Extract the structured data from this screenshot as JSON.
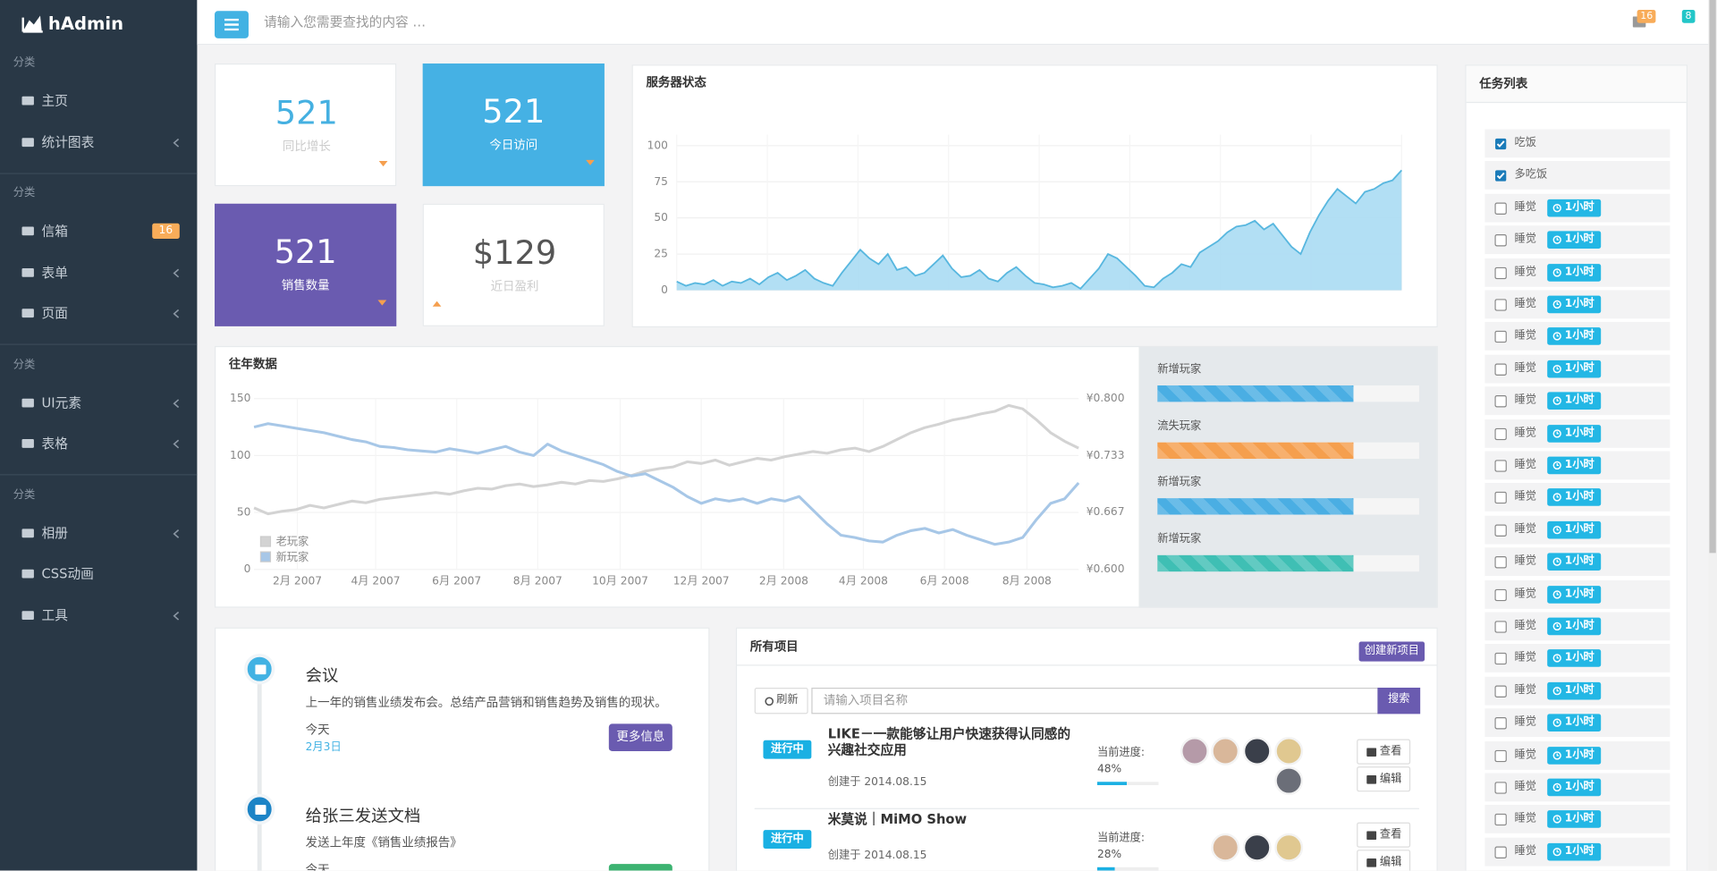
{
  "sidebar": {
    "brand": "hAdmin",
    "groups": [
      {
        "label": "分类",
        "items": [
          {
            "label": "主页"
          },
          {
            "label": "统计图表",
            "has_submenu": true
          }
        ]
      },
      {
        "label": "分类",
        "items": [
          {
            "label": "信箱",
            "badge": "16"
          },
          {
            "label": "表单",
            "has_submenu": true
          },
          {
            "label": "页面",
            "has_submenu": true
          }
        ]
      },
      {
        "label": "分类",
        "items": [
          {
            "label": "UI元素",
            "has_submenu": true
          },
          {
            "label": "表格",
            "has_submenu": true
          }
        ]
      },
      {
        "label": "分类",
        "items": [
          {
            "label": "相册",
            "has_submenu": true
          },
          {
            "label": "CSS动画"
          },
          {
            "label": "工具",
            "has_submenu": true
          }
        ]
      }
    ]
  },
  "topbar": {
    "search_placeholder": "请输入您需要查找的内容 …",
    "mail_count": "16",
    "bell_count": "8"
  },
  "stats": [
    {
      "value": "521",
      "label": "同比增长"
    },
    {
      "value": "521",
      "label": "今日访问"
    },
    {
      "value": "521",
      "label": "销售数量"
    },
    {
      "value": "$129",
      "label": "近日盈利"
    }
  ],
  "chart_data": [
    {
      "type": "area",
      "title": "服务器状态",
      "color": "#58b7df",
      "grid": true,
      "ylim": [
        0,
        100
      ],
      "yticks": [
        0,
        25,
        50,
        75,
        100
      ],
      "xlim": [
        0,
        79
      ],
      "values": [
        6,
        3,
        5,
        4,
        7,
        3,
        6,
        5,
        8,
        4,
        9,
        12,
        7,
        10,
        14,
        8,
        5,
        3,
        12,
        20,
        28,
        22,
        18,
        25,
        14,
        16,
        10,
        12,
        18,
        24,
        15,
        9,
        10,
        14,
        8,
        6,
        12,
        16,
        10,
        5,
        4,
        2,
        3,
        5,
        1,
        8,
        15,
        25,
        22,
        16,
        10,
        3,
        2,
        8,
        12,
        18,
        16,
        26,
        30,
        34,
        40,
        44,
        45,
        48,
        42,
        46,
        38,
        30,
        25,
        40,
        52,
        62,
        70,
        65,
        60,
        68,
        70,
        74,
        76,
        83
      ]
    },
    {
      "type": "line",
      "title": "往年数据",
      "grid": true,
      "legend": "bottom-left",
      "xlim": [
        0,
        59
      ],
      "xticks": [
        {
          "value": 3.1,
          "label": "2月 2007"
        },
        {
          "value": 8.7,
          "label": "4月 2007"
        },
        {
          "value": 14.5,
          "label": "6月 2007"
        },
        {
          "value": 20.3,
          "label": "8月 2007"
        },
        {
          "value": 26.2,
          "label": "10月 2007"
        },
        {
          "value": 32,
          "label": "12月 2007"
        },
        {
          "value": 37.9,
          "label": "2月 2008"
        },
        {
          "value": 43.6,
          "label": "4月 2008"
        },
        {
          "value": 49.4,
          "label": "6月 2008"
        },
        {
          "value": 55.3,
          "label": "8月 2008"
        }
      ],
      "ylim": [
        0,
        150
      ],
      "yticks": [
        0,
        50,
        100,
        150
      ],
      "y2lim": [
        0.6,
        0.8
      ],
      "y2ticks": [
        {
          "value": 0.6,
          "label": "¥0.600"
        },
        {
          "value": 0.667,
          "label": "¥0.667"
        },
        {
          "value": 0.733,
          "label": "¥0.733"
        },
        {
          "value": 0.8,
          "label": "¥0.800"
        }
      ],
      "series": [
        {
          "name": "老玩家",
          "color": "#d3d3d3",
          "axis": "y2",
          "values": [
            0.672,
            0.665,
            0.668,
            0.67,
            0.675,
            0.672,
            0.676,
            0.68,
            0.678,
            0.682,
            0.684,
            0.686,
            0.688,
            0.69,
            0.688,
            0.692,
            0.695,
            0.694,
            0.698,
            0.7,
            0.697,
            0.699,
            0.702,
            0.7,
            0.704,
            0.703,
            0.706,
            0.71,
            0.715,
            0.718,
            0.72,
            0.726,
            0.724,
            0.728,
            0.722,
            0.726,
            0.73,
            0.728,
            0.732,
            0.735,
            0.738,
            0.736,
            0.74,
            0.742,
            0.738,
            0.744,
            0.752,
            0.76,
            0.766,
            0.77,
            0.775,
            0.778,
            0.782,
            0.785,
            0.792,
            0.788,
            0.775,
            0.76,
            0.75,
            0.742
          ]
        },
        {
          "name": "新玩家",
          "color": "#a7c7e7",
          "values": [
            125,
            128,
            126,
            124,
            122,
            120,
            117,
            114,
            112,
            108,
            107,
            105,
            104,
            103,
            106,
            104,
            102,
            105,
            108,
            103,
            100,
            110,
            104,
            100,
            96,
            92,
            86,
            82,
            84,
            78,
            72,
            64,
            58,
            62,
            60,
            62,
            58,
            62,
            60,
            64,
            52,
            40,
            30,
            28,
            25,
            24,
            30,
            34,
            36,
            32,
            35,
            30,
            26,
            22,
            24,
            28,
            44,
            58,
            62,
            76
          ]
        }
      ]
    }
  ],
  "progress_panel": {
    "bars": [
      {
        "label": "新增玩家",
        "value": 75,
        "color": "#4aaee3"
      },
      {
        "label": "流失玩家",
        "value": 75,
        "color": "#f59f4e"
      },
      {
        "label": "新增玩家",
        "value": 75,
        "color": "#4aaee3"
      },
      {
        "label": "新增玩家",
        "value": 75,
        "color": "#3fbfb4"
      }
    ]
  },
  "tasks": {
    "title": "任务列表",
    "items": [
      {
        "text": "吃饭",
        "checked": true
      },
      {
        "text": "多吃饭",
        "checked": true
      },
      {
        "text": "睡觉",
        "checked": false,
        "tag": "1小时"
      },
      {
        "text": "睡觉",
        "checked": false,
        "tag": "1小时"
      },
      {
        "text": "睡觉",
        "checked": false,
        "tag": "1小时"
      },
      {
        "text": "睡觉",
        "checked": false,
        "tag": "1小时"
      },
      {
        "text": "睡觉",
        "checked": false,
        "tag": "1小时"
      },
      {
        "text": "睡觉",
        "checked": false,
        "tag": "1小时"
      },
      {
        "text": "睡觉",
        "checked": false,
        "tag": "1小时"
      },
      {
        "text": "睡觉",
        "checked": false,
        "tag": "1小时"
      },
      {
        "text": "睡觉",
        "checked": false,
        "tag": "1小时"
      },
      {
        "text": "睡觉",
        "checked": false,
        "tag": "1小时"
      },
      {
        "text": "睡觉",
        "checked": false,
        "tag": "1小时"
      },
      {
        "text": "睡觉",
        "checked": false,
        "tag": "1小时"
      },
      {
        "text": "睡觉",
        "checked": false,
        "tag": "1小时"
      },
      {
        "text": "睡觉",
        "checked": false,
        "tag": "1小时"
      },
      {
        "text": "睡觉",
        "checked": false,
        "tag": "1小时"
      },
      {
        "text": "睡觉",
        "checked": false,
        "tag": "1小时"
      },
      {
        "text": "睡觉",
        "checked": false,
        "tag": "1小时"
      },
      {
        "text": "睡觉",
        "checked": false,
        "tag": "1小时"
      },
      {
        "text": "睡觉",
        "checked": false,
        "tag": "1小时"
      },
      {
        "text": "睡觉",
        "checked": false,
        "tag": "1小时"
      },
      {
        "text": "睡觉",
        "checked": false,
        "tag": "1小时"
      }
    ]
  },
  "timeline": [
    {
      "title": "会议",
      "text": "上一年的销售业绩发布会。总结产品营销和销售趋势及销售的现状。",
      "time": "今天",
      "date": "2月3日",
      "button": "更多信息"
    },
    {
      "title": "给张三发送文档",
      "text": "发送上年度《销售业绩报告》",
      "time": "今天"
    }
  ],
  "projects": {
    "title": "所有项目",
    "create_button": "创建新项目",
    "refresh_button": "刷新",
    "search_placeholder": "请输入项目名称",
    "search_button": "搜索",
    "rows": [
      {
        "status": "进行中",
        "name": "LIKE－一款能够让用户快速获得认同感的兴趣社交应用",
        "created": "创建于 2014.08.15",
        "progress_caption": "当前进度:",
        "progress": {
          "value": 48,
          "label": "48%"
        },
        "view": "查看",
        "edit": "编辑"
      },
      {
        "status": "进行中",
        "name": "米莫说｜MiMO Show",
        "created": "创建于 2014.08.15",
        "progress_caption": "当前进度:",
        "progress": {
          "value": 28,
          "label": "28%"
        },
        "view": "查看",
        "edit": "编辑"
      }
    ]
  }
}
